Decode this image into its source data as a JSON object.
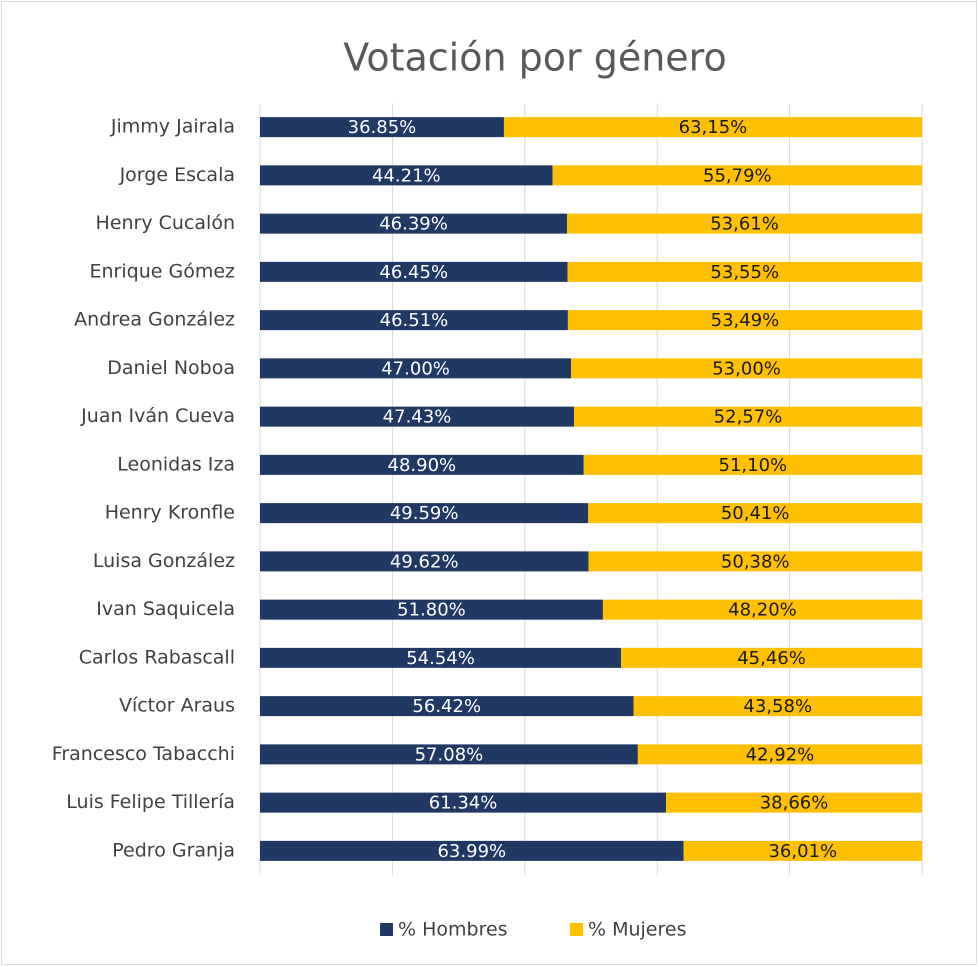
{
  "chart_data": {
    "type": "bar",
    "orientation": "horizontal",
    "stacked": true,
    "title": "Votación por género",
    "categories": [
      "Jimmy Jairala",
      "Jorge Escala",
      "Henry Cucalón",
      "Enrique Gómez",
      "Andrea González",
      "Daniel Noboa",
      "Juan Iván Cueva",
      "Leonidas Iza",
      "Henry Kronfle",
      "Luisa González",
      "Ivan Saquicela",
      "Carlos Rabascall",
      "Víctor Araus",
      "Francesco Tabacchi",
      "Luis Felipe Tillería",
      "Pedro Granja"
    ],
    "series": [
      {
        "name": "% Hombres",
        "color": "#1f3864",
        "label_color": "#ffffff",
        "values": [
          36.85,
          44.21,
          46.39,
          46.45,
          46.51,
          47.0,
          47.43,
          48.9,
          49.59,
          49.62,
          51.8,
          54.54,
          56.42,
          57.08,
          61.34,
          63.99
        ],
        "value_labels": [
          "36.85%",
          "44.21%",
          "46.39%",
          "46.45%",
          "46.51%",
          "47.00%",
          "47.43%",
          "48.90%",
          "49.59%",
          "49.62%",
          "51.80%",
          "54.54%",
          "56.42%",
          "57.08%",
          "61.34%",
          "63.99%"
        ]
      },
      {
        "name": "% Mujeres",
        "color": "#ffc000",
        "label_color": "#1a1a1a",
        "values": [
          63.15,
          55.79,
          53.61,
          53.55,
          53.49,
          53.0,
          52.57,
          51.1,
          50.41,
          50.38,
          48.2,
          45.46,
          43.58,
          42.92,
          38.66,
          36.01
        ],
        "value_labels": [
          "63,15%",
          "55,79%",
          "53,61%",
          "53,55%",
          "53,49%",
          "53,00%",
          "52,57%",
          "51,10%",
          "50,41%",
          "50,38%",
          "48,20%",
          "45,46%",
          "43,58%",
          "42,92%",
          "38,66%",
          "36,01%"
        ]
      }
    ],
    "xlim": [
      0,
      100
    ],
    "xticks": [
      0,
      20,
      40,
      60,
      80,
      100
    ],
    "grid": true,
    "legend": "bottom"
  }
}
